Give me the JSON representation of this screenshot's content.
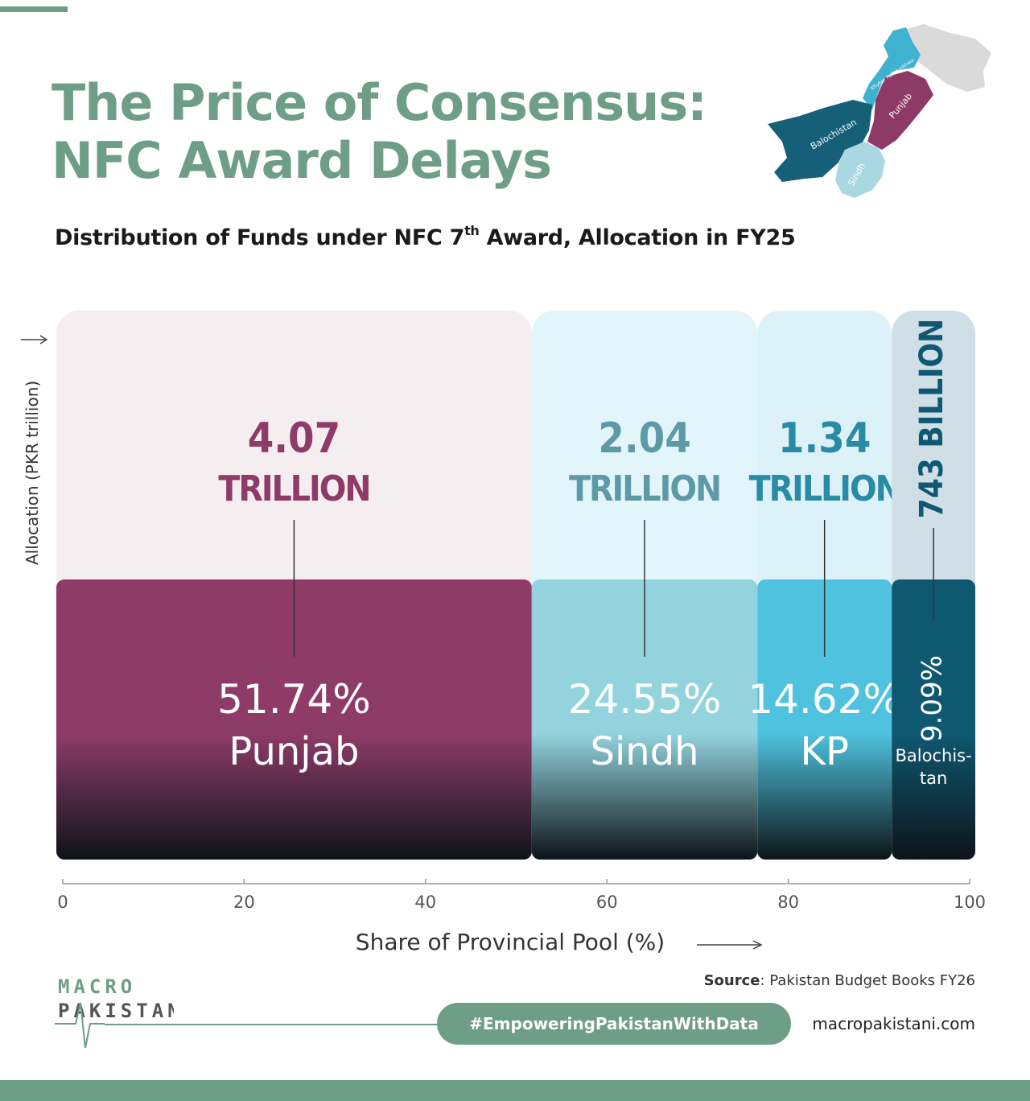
{
  "header": {
    "title_line1": "The Price of Consensus:",
    "title_line2": "NFC Award Delays",
    "subtitle_pre": "Distribution of Funds under NFC 7",
    "subtitle_sup": "th",
    "subtitle_post": " Award, Allocation in FY25"
  },
  "map": {
    "labels": [
      "Balochistan",
      "Punjab",
      "Sindh",
      "Khyber Pakhtunkhwa"
    ],
    "colors": {
      "balochistan": "#155f79",
      "punjab": "#8d3a66",
      "sindh": "#a9d8e2",
      "kp": "#3fb2d0",
      "other": "#dadada"
    }
  },
  "chart_data": {
    "type": "bar",
    "chart_style": "variable-width (mekko) bars",
    "ylabel": "Allocation (PKR trillion)",
    "xlabel": "Share of Provincial Pool (%)",
    "xlim": [
      0,
      100
    ],
    "x_ticks": [
      "0",
      "20",
      "40",
      "60",
      "80",
      "100"
    ],
    "categories": [
      "Punjab",
      "Sindh",
      "KP",
      "Balochistan"
    ],
    "shares_pct": [
      51.74,
      24.55,
      14.62,
      9.09
    ],
    "share_labels": [
      "51.74%",
      "24.55%",
      "14.62%",
      "9.09%"
    ],
    "category_labels": [
      "Punjab",
      "Sindh",
      "KP",
      "Balochis-\ntan"
    ],
    "allocation_pkr_trillion": [
      4.07,
      2.04,
      1.34,
      0.743
    ],
    "allocation_value_labels": [
      "4.07",
      "2.04",
      "1.34",
      "743 BILLION"
    ],
    "allocation_unit_label": "TRILLION",
    "colors": {
      "bar_fill": [
        "#8e3b68",
        "#93d3de",
        "#4ec2de",
        "#0f5872"
      ],
      "label_text": [
        "#8e3b68",
        "#5e9aa6",
        "#2a8ba6",
        "#0f5872"
      ],
      "backdrop": [
        "#f5eef1",
        "#e2f5fa",
        "#ddf2f8",
        "#cfdfe5"
      ]
    }
  },
  "footer": {
    "logo_line1": "MACRO",
    "logo_line2": "PAKISTANI",
    "source_label": "Source",
    "source_text": ": Pakistan Budget Books FY26",
    "hashtag": "#EmpoweringPakistanWithData",
    "website": "macropakistani.com"
  }
}
